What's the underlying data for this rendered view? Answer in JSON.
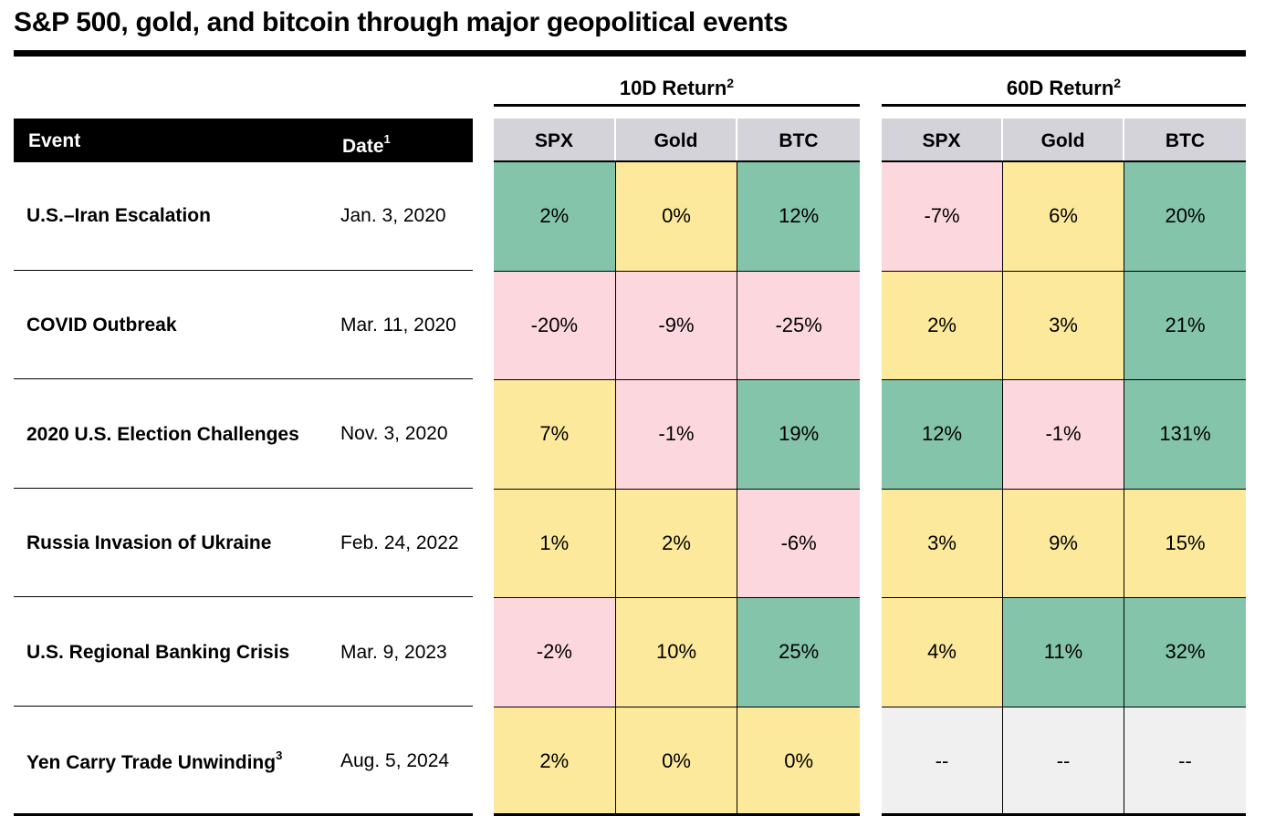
{
  "title": "S&P 500, gold, and bitcoin through major geopolitical events",
  "groups": [
    {
      "label": "10D Return",
      "sup": "2"
    },
    {
      "label": "60D Return",
      "sup": "2"
    }
  ],
  "header": {
    "event": "Event",
    "date": "Date",
    "date_sup": "1",
    "columns": [
      "SPX",
      "Gold",
      "BTC",
      "SPX",
      "Gold",
      "BTC"
    ]
  },
  "rows": [
    {
      "event": "U.S.–Iran Escalation",
      "date": "Jan. 3, 2020"
    },
    {
      "event": "COVID Outbreak",
      "date": "Mar. 11, 2020"
    },
    {
      "event": "2020 U.S. Election Challenges",
      "date": "Nov. 3, 2020"
    },
    {
      "event": "Russia Invasion of Ukraine",
      "date": "Feb. 24, 2022"
    },
    {
      "event": "U.S. Regional Banking Crisis",
      "date": "Mar. 9, 2023"
    },
    {
      "event": "Yen Carry Trade Unwinding",
      "event_sup": "3",
      "date": "Aug. 5, 2024"
    }
  ],
  "colors": {
    "positive": "#84c4ab",
    "neutral": "#fce99b",
    "negative": "#fdd7de",
    "not_available": "#f0f0f0",
    "header_gray": "#d4d3da"
  },
  "chart_data": {
    "type": "table",
    "title": "S&P 500, gold, and bitcoin through major geopolitical events",
    "row_headers": [
      "U.S.–Iran Escalation",
      "COVID Outbreak",
      "2020 U.S. Election Challenges",
      "Russia Invasion of Ukraine",
      "U.S. Regional Banking Crisis",
      "Yen Carry Trade Unwinding"
    ],
    "dates": [
      "Jan. 3, 2020",
      "Mar. 11, 2020",
      "Nov. 3, 2020",
      "Feb. 24, 2022",
      "Mar. 9, 2023",
      "Aug. 5, 2024"
    ],
    "column_groups": [
      "10D Return",
      "60D Return"
    ],
    "columns": [
      "SPX",
      "Gold",
      "BTC"
    ],
    "tables": [
      {
        "group": "10D Return",
        "cells": [
          [
            {
              "text": "2%",
              "tone": "positive"
            },
            {
              "text": "0%",
              "tone": "neutral"
            },
            {
              "text": "12%",
              "tone": "positive"
            }
          ],
          [
            {
              "text": "-20%",
              "tone": "negative"
            },
            {
              "text": "-9%",
              "tone": "negative"
            },
            {
              "text": "-25%",
              "tone": "negative"
            }
          ],
          [
            {
              "text": "7%",
              "tone": "neutral"
            },
            {
              "text": "-1%",
              "tone": "negative"
            },
            {
              "text": "19%",
              "tone": "positive"
            }
          ],
          [
            {
              "text": "1%",
              "tone": "neutral"
            },
            {
              "text": "2%",
              "tone": "neutral"
            },
            {
              "text": "-6%",
              "tone": "negative"
            }
          ],
          [
            {
              "text": "-2%",
              "tone": "negative"
            },
            {
              "text": "10%",
              "tone": "neutral"
            },
            {
              "text": "25%",
              "tone": "positive"
            }
          ],
          [
            {
              "text": "2%",
              "tone": "neutral"
            },
            {
              "text": "0%",
              "tone": "neutral"
            },
            {
              "text": "0%",
              "tone": "neutral"
            }
          ]
        ]
      },
      {
        "group": "60D Return",
        "cells": [
          [
            {
              "text": "-7%",
              "tone": "negative"
            },
            {
              "text": "6%",
              "tone": "neutral"
            },
            {
              "text": "20%",
              "tone": "positive"
            }
          ],
          [
            {
              "text": "2%",
              "tone": "neutral"
            },
            {
              "text": "3%",
              "tone": "neutral"
            },
            {
              "text": "21%",
              "tone": "positive"
            }
          ],
          [
            {
              "text": "12%",
              "tone": "positive"
            },
            {
              "text": "-1%",
              "tone": "negative"
            },
            {
              "text": "131%",
              "tone": "positive"
            }
          ],
          [
            {
              "text": "3%",
              "tone": "neutral"
            },
            {
              "text": "9%",
              "tone": "neutral"
            },
            {
              "text": "15%",
              "tone": "neutral"
            }
          ],
          [
            {
              "text": "4%",
              "tone": "neutral"
            },
            {
              "text": "11%",
              "tone": "positive"
            },
            {
              "text": "32%",
              "tone": "positive"
            }
          ],
          [
            {
              "text": "--",
              "tone": "not_available"
            },
            {
              "text": "--",
              "tone": "not_available"
            },
            {
              "text": "--",
              "tone": "not_available"
            }
          ]
        ]
      }
    ]
  }
}
